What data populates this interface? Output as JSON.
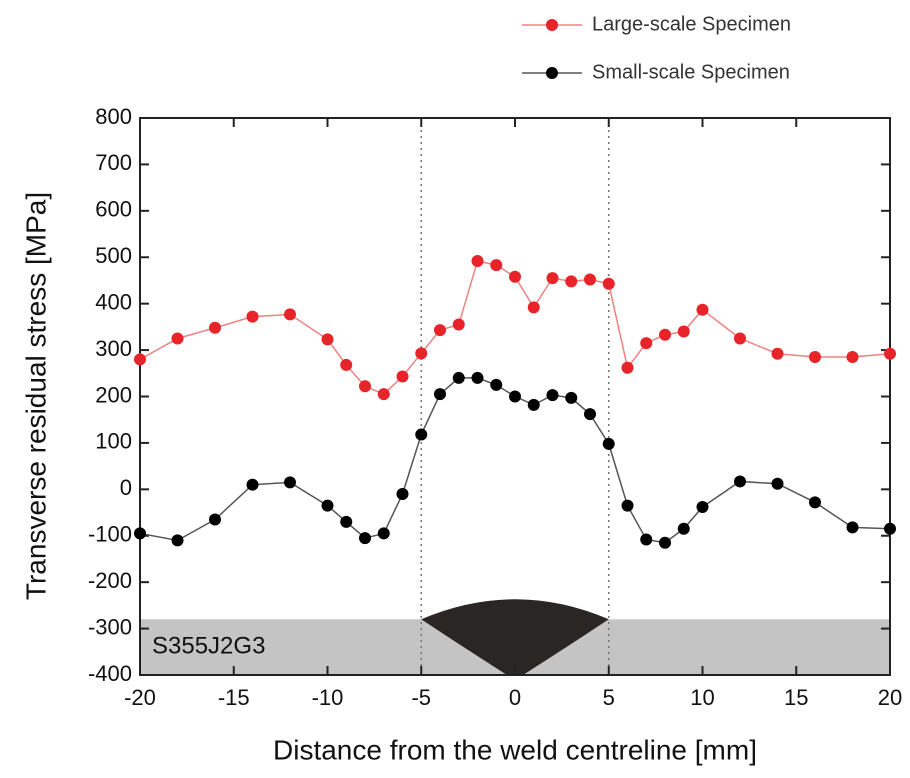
{
  "chart_data": {
    "type": "line",
    "xlabel": "Distance from the weld centreline [mm]",
    "ylabel": "Transverse residual stress [MPa]",
    "x": [
      -20,
      -18,
      -16,
      -14,
      -12,
      -10,
      -9,
      -8,
      -7,
      -6,
      -5,
      -4,
      -3,
      -2,
      -1,
      0,
      1,
      2,
      3,
      4,
      5,
      6,
      7,
      8,
      9,
      10,
      12,
      14,
      16,
      18,
      20
    ],
    "series": [
      {
        "name": "Large-scale Specimen",
        "color": "#e8242a",
        "line_color": "#f08080",
        "values": [
          280,
          325,
          348,
          372,
          377,
          323,
          268,
          222,
          205,
          243,
          293,
          343,
          355,
          492,
          483,
          458,
          392,
          455,
          448,
          452,
          443,
          262,
          315,
          333,
          340,
          387,
          325,
          292,
          285,
          285,
          292
        ]
      },
      {
        "name": "Small-scale Specimen",
        "color": "#000000",
        "line_color": "#555555",
        "values": [
          -95,
          -110,
          -65,
          10,
          15,
          -35,
          -70,
          -105,
          -95,
          -10,
          118,
          205,
          240,
          240,
          225,
          200,
          182,
          203,
          197,
          162,
          98,
          -35,
          -108,
          -115,
          -85,
          -38,
          17,
          12,
          -28,
          -82,
          -85
        ]
      }
    ],
    "xlim": [
      -20,
      20
    ],
    "xticks": [
      -20,
      -15,
      -10,
      -5,
      0,
      5,
      10,
      15,
      20
    ],
    "ylim": [
      -400,
      800
    ],
    "yticks": [
      -400,
      -300,
      -200,
      -100,
      0,
      100,
      200,
      300,
      400,
      500,
      600,
      700,
      800
    ],
    "vlines": [
      -5,
      5
    ],
    "plate": {
      "label": "S355J2G3",
      "ylim": [
        -400,
        -280
      ]
    }
  }
}
